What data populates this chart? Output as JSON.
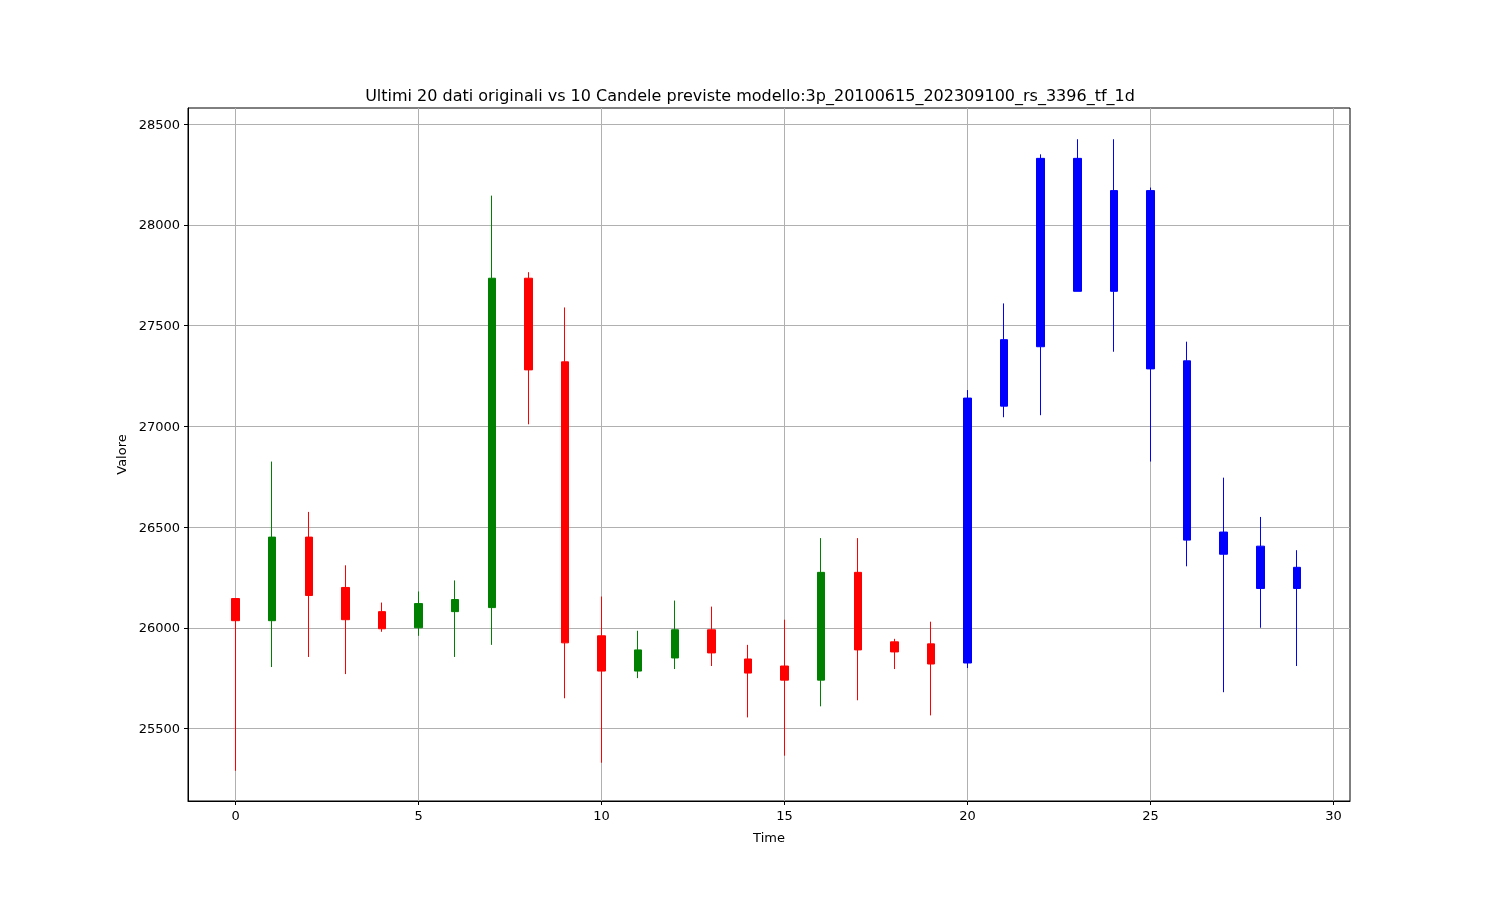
{
  "chart_data": {
    "type": "candlestick",
    "title": "Ultimi 20 dati originali vs 10 Candele previste modello:3p_20100615_202309100_rs_3396_tf_1d",
    "xlabel": "Time",
    "ylabel": "Valore",
    "xlim": [
      -1.3,
      30.45
    ],
    "xticks": [
      0,
      5,
      10,
      15,
      20,
      25,
      30
    ],
    "ylim": [
      25140,
      28580
    ],
    "yticks": [
      25500,
      26000,
      26500,
      27000,
      27500,
      28000,
      28500
    ],
    "grid": true,
    "series": [
      {
        "x": [
          0,
          1,
          2,
          3,
          4,
          5,
          6,
          7,
          8,
          9,
          10,
          11,
          12,
          13,
          14,
          15,
          16,
          17,
          18,
          19
        ],
        "ohlc": [
          [
            26145,
            26145,
            25290,
            26035
          ],
          [
            26035,
            26825,
            25805,
            26450
          ],
          [
            26450,
            26575,
            25855,
            26160
          ],
          [
            26200,
            26310,
            25770,
            26040
          ],
          [
            26080,
            26125,
            25980,
            25995
          ],
          [
            26000,
            26180,
            25960,
            26120
          ],
          [
            26080,
            26235,
            25855,
            26140
          ],
          [
            26100,
            28145,
            25915,
            27735
          ],
          [
            27735,
            27765,
            27010,
            27280
          ],
          [
            27320,
            27590,
            25650,
            25925
          ],
          [
            25960,
            26155,
            25330,
            25785
          ],
          [
            25785,
            25985,
            25750,
            25890
          ],
          [
            25850,
            26135,
            25795,
            25990
          ],
          [
            25990,
            26105,
            25810,
            25875
          ],
          [
            25845,
            25915,
            25555,
            25775
          ],
          [
            25810,
            26040,
            25365,
            25740
          ],
          [
            25740,
            26445,
            25610,
            26275
          ],
          [
            26275,
            26445,
            25640,
            25890
          ],
          [
            25930,
            25945,
            25795,
            25880
          ],
          [
            25920,
            26030,
            25565,
            25820
          ]
        ],
        "colors": [
          "#ff0000",
          "#008000",
          "#ff0000",
          "#ff0000",
          "#ff0000",
          "#008000",
          "#008000",
          "#008000",
          "#ff0000",
          "#ff0000",
          "#ff0000",
          "#008000",
          "#008000",
          "#ff0000",
          "#ff0000",
          "#ff0000",
          "#008000",
          "#ff0000",
          "#ff0000",
          "#ff0000"
        ]
      },
      {
        "x": [
          20,
          21,
          22,
          23,
          24,
          25,
          26,
          27,
          28,
          29
        ],
        "ohlc": [
          [
            25825,
            27180,
            25800,
            27140
          ],
          [
            27100,
            27610,
            27045,
            27430
          ],
          [
            27395,
            28350,
            27055,
            28330
          ],
          [
            27670,
            28425,
            27670,
            28330
          ],
          [
            27670,
            28425,
            27370,
            28170
          ],
          [
            27285,
            28185,
            26825,
            28170
          ],
          [
            26435,
            27420,
            26305,
            27325
          ],
          [
            26365,
            26745,
            25680,
            26475
          ],
          [
            26195,
            26550,
            26000,
            26405
          ],
          [
            26195,
            26385,
            25810,
            26300
          ]
        ],
        "color": "#0000ff"
      }
    ]
  }
}
